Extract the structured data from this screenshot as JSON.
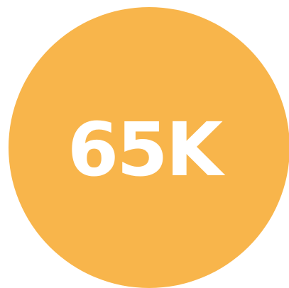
{
  "badge": {
    "value": "65K",
    "background_color": "#F8B54B",
    "text_color": "#FFFFFF"
  }
}
